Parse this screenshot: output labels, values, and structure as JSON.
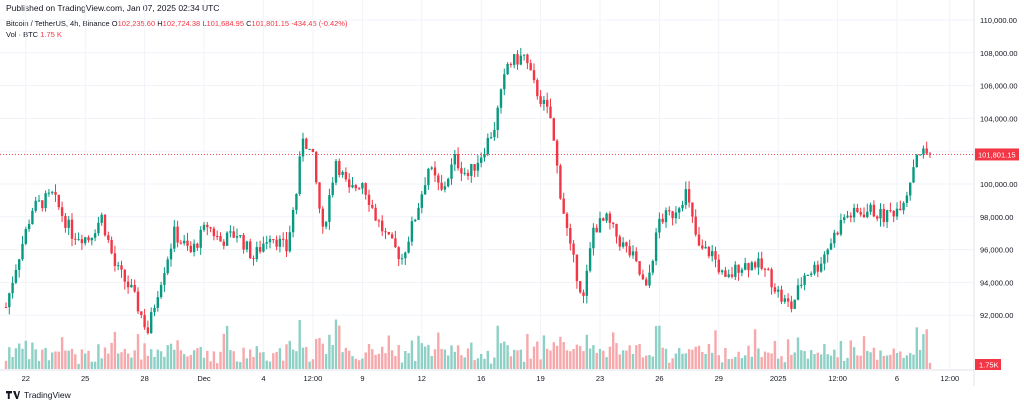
{
  "header": {
    "published": "Published on TradingView.com, Jan 07, 2025 02:34 UTC"
  },
  "legend": {
    "symbol": "Bitcoin / TetherUS, 4h, Binance",
    "open_label": "O",
    "open": "102,235.60",
    "high_label": "H",
    "high": "102,724.38",
    "low_label": "L",
    "low": "101,684.95",
    "close_label": "C",
    "close": "101,801.15",
    "change": "-434.45 (-0.42%)",
    "vol_label": "Vol · BTC",
    "vol_value": "1.75 K"
  },
  "footer": {
    "brand": "TradingView",
    "logo_icon": "tradingview-logo-icon"
  },
  "colors": {
    "up": "#089981",
    "down": "#f23645",
    "up_vol": "#8dd0c5",
    "down_vol": "#f7a8ab",
    "grid": "#f0f3fa"
  },
  "chart_data": {
    "type": "candlestick",
    "title": "Bitcoin / TetherUS, 4h, Binance",
    "y_axis": {
      "min": 90000,
      "max": 110000,
      "ticks": [
        {
          "v": 92000,
          "label": "92,000.00"
        },
        {
          "v": 94000,
          "label": "94,000.00"
        },
        {
          "v": 96000,
          "label": "96,000.00"
        },
        {
          "v": 98000,
          "label": "98,000.00"
        },
        {
          "v": 100000,
          "label": "100,000.00"
        },
        {
          "v": 102000,
          "label": "102,000.00"
        },
        {
          "v": 104000,
          "label": "104,000.00"
        },
        {
          "v": 106000,
          "label": "106,000.00"
        },
        {
          "v": 108000,
          "label": "108,000.00"
        },
        {
          "v": 110000,
          "label": "110,000.00"
        }
      ]
    },
    "x_axis": {
      "ticks": [
        {
          "i": 6,
          "label": "22"
        },
        {
          "i": 24,
          "label": "25"
        },
        {
          "i": 42,
          "label": "28"
        },
        {
          "i": 60,
          "label": "Dec"
        },
        {
          "i": 78,
          "label": "4"
        },
        {
          "i": 93,
          "label": "12:00"
        },
        {
          "i": 108,
          "label": "9"
        },
        {
          "i": 126,
          "label": "12"
        },
        {
          "i": 144,
          "label": "16"
        },
        {
          "i": 162,
          "label": "19"
        },
        {
          "i": 180,
          "label": "23"
        },
        {
          "i": 198,
          "label": "26"
        },
        {
          "i": 216,
          "label": "29"
        },
        {
          "i": 234,
          "label": "2025"
        },
        {
          "i": 252,
          "label": "12:00"
        },
        {
          "i": 270,
          "label": "6"
        },
        {
          "i": 286,
          "label": "12:00"
        }
      ]
    },
    "last_price": {
      "value": 101801.15,
      "label": "101,801.15"
    },
    "last_volume_label": "1.75K",
    "volume_max": 20000,
    "waypoints": [
      [
        0,
        92500
      ],
      [
        3,
        95000
      ],
      [
        8,
        98500
      ],
      [
        14,
        99300
      ],
      [
        20,
        97000
      ],
      [
        25,
        96700
      ],
      [
        29,
        98000
      ],
      [
        33,
        95000
      ],
      [
        38,
        93500
      ],
      [
        43,
        91000
      ],
      [
        46,
        93500
      ],
      [
        51,
        97000
      ],
      [
        56,
        95800
      ],
      [
        61,
        97500
      ],
      [
        65,
        96500
      ],
      [
        70,
        97000
      ],
      [
        75,
        95500
      ],
      [
        80,
        97000
      ],
      [
        85,
        96000
      ],
      [
        88,
        99500
      ],
      [
        90,
        103000
      ],
      [
        93,
        101500
      ],
      [
        96,
        97000
      ],
      [
        100,
        101500
      ],
      [
        104,
        99500
      ],
      [
        108,
        100200
      ],
      [
        112,
        98000
      ],
      [
        116,
        96500
      ],
      [
        120,
        95500
      ],
      [
        124,
        98000
      ],
      [
        128,
        101000
      ],
      [
        132,
        99500
      ],
      [
        136,
        101500
      ],
      [
        140,
        100500
      ],
      [
        144,
        101800
      ],
      [
        148,
        103500
      ],
      [
        152,
        107300
      ],
      [
        157,
        107800
      ],
      [
        160,
        106000
      ],
      [
        165,
        104000
      ],
      [
        168,
        99500
      ],
      [
        171,
        96000
      ],
      [
        175,
        93000
      ],
      [
        178,
        97300
      ],
      [
        182,
        97800
      ],
      [
        186,
        96500
      ],
      [
        190,
        95500
      ],
      [
        194,
        93500
      ],
      [
        198,
        97800
      ],
      [
        202,
        98200
      ],
      [
        206,
        99500
      ],
      [
        210,
        96000
      ],
      [
        214,
        95800
      ],
      [
        218,
        94000
      ],
      [
        222,
        95000
      ],
      [
        227,
        95200
      ],
      [
        231,
        94500
      ],
      [
        235,
        93000
      ],
      [
        238,
        92500
      ],
      [
        242,
        94500
      ],
      [
        246,
        95000
      ],
      [
        250,
        96500
      ],
      [
        254,
        98000
      ],
      [
        258,
        98200
      ],
      [
        262,
        98400
      ],
      [
        266,
        98000
      ],
      [
        270,
        98500
      ],
      [
        273,
        99500
      ],
      [
        276,
        102000
      ],
      [
        280,
        101800
      ]
    ]
  }
}
